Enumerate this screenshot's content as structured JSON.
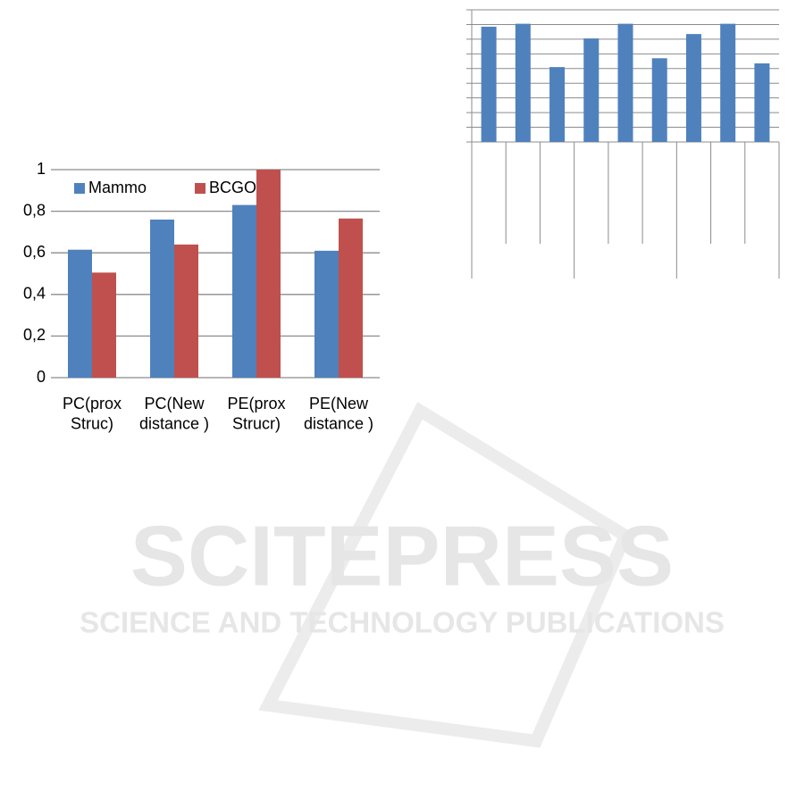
{
  "chart_data": [
    {
      "type": "bar",
      "categories": [
        "PC(prox\nStruc)",
        "PC(New\ndistance )",
        "PE(prox\nStrucr)",
        "PE(New\ndistance )"
      ],
      "series": [
        {
          "name": "Mammo",
          "color": "#4f81bd",
          "values": [
            0.615,
            0.76,
            0.83,
            0.61
          ]
        },
        {
          "name": "BCGO",
          "color": "#c0504d",
          "values": [
            0.505,
            0.64,
            1.0,
            0.765
          ]
        }
      ],
      "ylim": [
        0,
        1
      ],
      "yticks": [
        0,
        {
          "value": 0.2,
          "label": "0,2"
        },
        {
          "value": 0.4,
          "label": "0,4"
        },
        {
          "value": 0.6,
          "label": "0,6"
        },
        {
          "value": 0.8,
          "label": "0,8"
        },
        1
      ],
      "grid": true,
      "legend": "top"
    },
    {
      "type": "bar",
      "categories": [
        null,
        null,
        null,
        null,
        null,
        null,
        null,
        null,
        null
      ],
      "values": [
        7.85,
        8.05,
        5.1,
        7.05,
        8.05,
        5.7,
        7.35,
        8.05,
        5.35
      ],
      "color": "#4f81bd",
      "ylim": [
        0,
        9
      ],
      "yticks": [
        0,
        1,
        2,
        3,
        4,
        5,
        6,
        7,
        8,
        9
      ],
      "grid": true
    }
  ],
  "watermark": {
    "title": "SCITEPRESS",
    "subtitle": "SCIENCE AND TECHNOLOGY PUBLICATIONS"
  }
}
